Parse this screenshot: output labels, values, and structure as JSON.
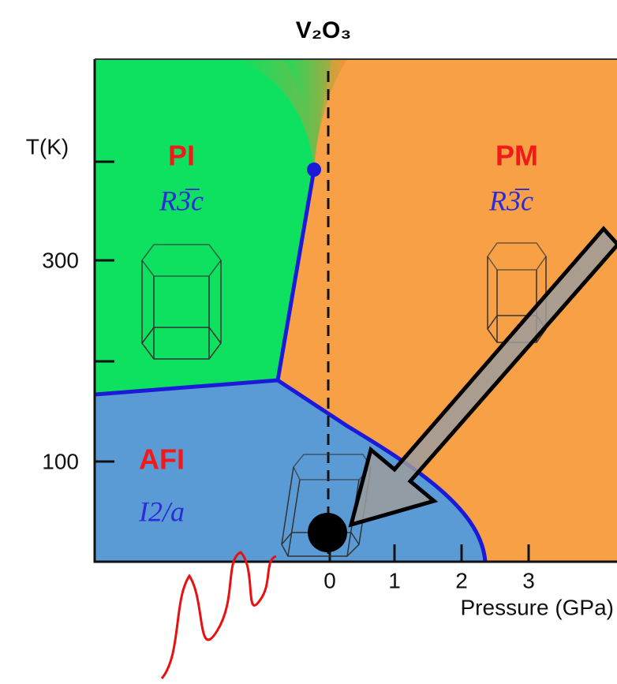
{
  "title": "V₂O₃",
  "y_axis": {
    "label": "T(K)",
    "ticks": [
      "300",
      "100"
    ]
  },
  "x_axis": {
    "label": "Pressure (GPa)",
    "ticks": [
      "0",
      "1",
      "2",
      "3"
    ]
  },
  "phases": [
    {
      "name": "PI",
      "space_group": "R3̅c"
    },
    {
      "name": "PM",
      "space_group": "R3̅c"
    },
    {
      "name": "AFI",
      "space_group": "I2/a"
    }
  ]
}
